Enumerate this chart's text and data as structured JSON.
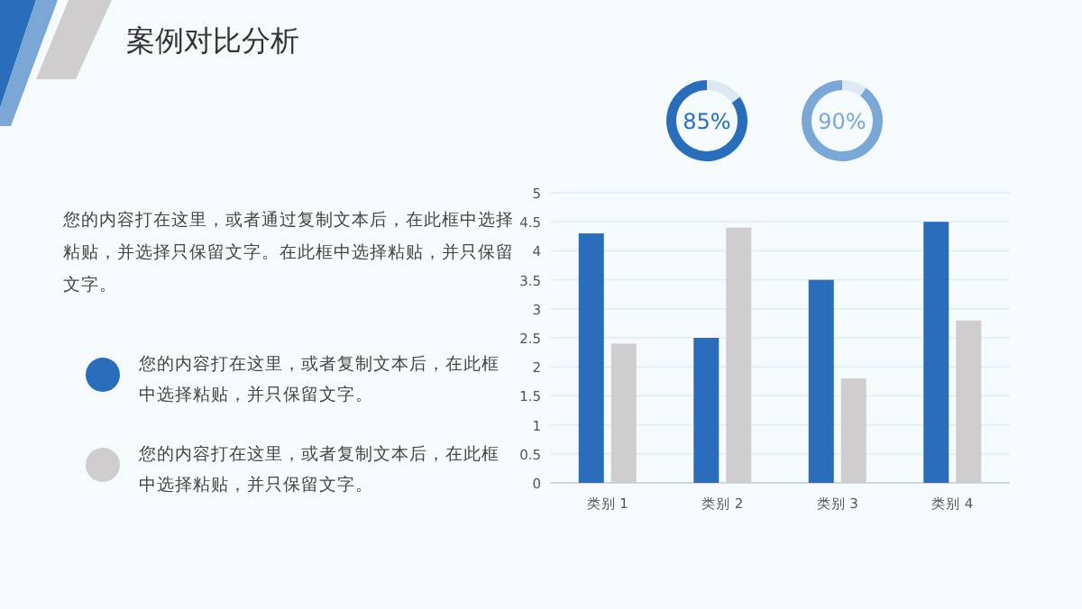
{
  "chart_data": [
    {
      "type": "other",
      "title": "案例对比分析",
      "annotations": [
        "您的内容打在这里，或者通过复制文本后，在此框中选择粘贴，并选择只保留文字。在此框中选择粘贴，并只保留文字。"
      ]
    },
    {
      "type": "donut",
      "categories": [
        null,
        null
      ],
      "values": [
        85,
        15
      ],
      "colors": [
        "#2a6ebb",
        "#dce8f2"
      ],
      "annotations": [
        "85%"
      ]
    },
    {
      "type": "donut",
      "categories": [
        null,
        null
      ],
      "values": [
        90,
        10
      ],
      "colors": [
        "#7aa7d6",
        "#dce8f2"
      ],
      "annotations": [
        "90%"
      ]
    },
    {
      "type": "bar",
      "categories": [
        "类别 1",
        "类别 2",
        "类别 3",
        "类别 4"
      ],
      "series": [
        {
          "name": "您的内容打在这里，或者复制文本后，在此框中选择粘贴，并只保留文字。",
          "color": "#2a6ebb",
          "values": [
            4.3,
            2.5,
            3.5,
            4.5
          ]
        },
        {
          "name": "您的内容打在这里，或者复制文本后，在此框中选择粘贴，并只保留文字。",
          "color": "#cfcdcd",
          "values": [
            2.4,
            4.4,
            1.8,
            2.8
          ]
        }
      ],
      "ylim": [
        0,
        5
      ],
      "yticks": [
        0,
        0.5,
        1,
        1.5,
        2,
        2.5,
        3,
        3.5,
        4,
        4.5,
        5
      ],
      "grid": "y",
      "legend": "left"
    }
  ]
}
